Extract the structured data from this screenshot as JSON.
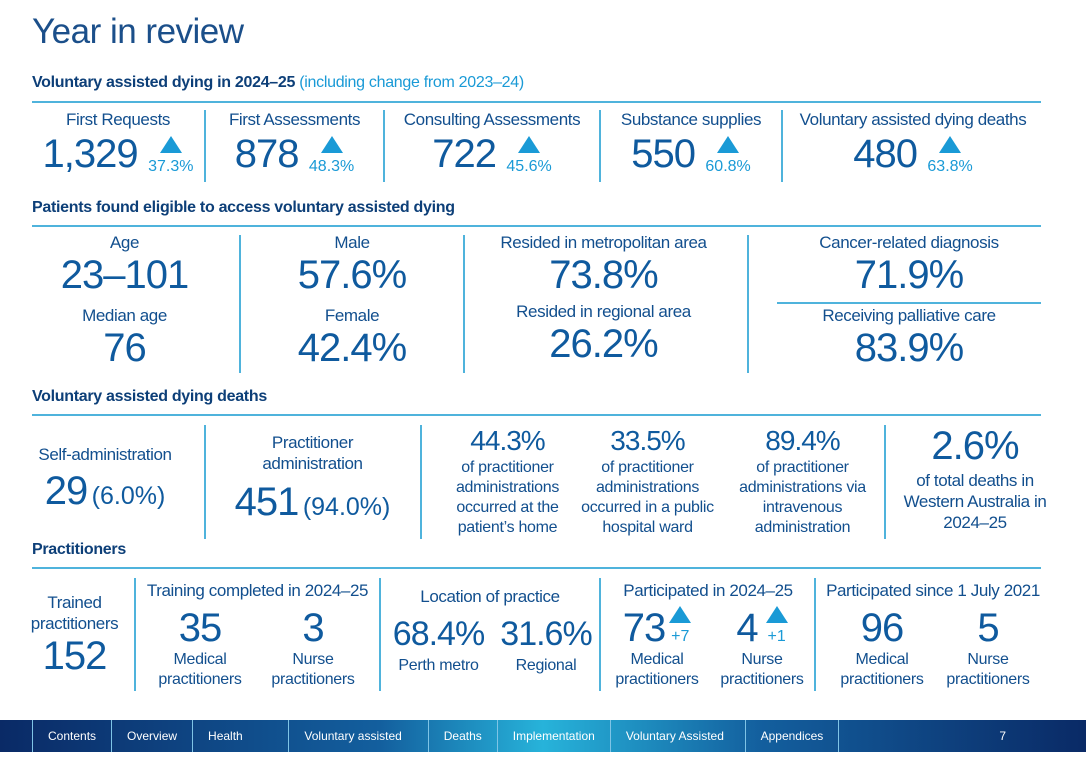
{
  "title": "Year in review",
  "s1": {
    "heading": "Voluntary assisted dying in 2024–25",
    "heading_note": "(including change from 2023–24)",
    "stats": [
      {
        "label": "First Requests",
        "value": "1,329",
        "change": "37.3%"
      },
      {
        "label": "First Assessments",
        "value": "878",
        "change": "48.3%"
      },
      {
        "label": "Consulting Assessments",
        "value": "722",
        "change": "45.6%"
      },
      {
        "label": "Substance supplies",
        "value": "550",
        "change": "60.8%"
      },
      {
        "label": "Voluntary assisted dying deaths",
        "value": "480",
        "change": "63.8%"
      }
    ]
  },
  "s2": {
    "heading": "Patients found eligible to access voluntary assisted dying",
    "age_label": "Age",
    "age_value": "23–101",
    "median_label": "Median age",
    "median_value": "76",
    "male_label": "Male",
    "male_value": "57.6%",
    "female_label": "Female",
    "female_value": "42.4%",
    "metro_label": "Resided in metropolitan area",
    "metro_value": "73.8%",
    "regional_label": "Resided in regional area",
    "regional_value": "26.2%",
    "cancer_label": "Cancer-related diagnosis",
    "cancer_value": "71.9%",
    "palliative_label": "Receiving palliative care",
    "palliative_value": "83.9%"
  },
  "s3": {
    "heading": "Voluntary assisted dying deaths",
    "self_label": "Self-administration",
    "self_value": "29",
    "self_pct": "(6.0%)",
    "prac_label": "Practitioner administration",
    "prac_value": "451",
    "prac_pct": "(94.0%)",
    "details": [
      {
        "value": "44.3%",
        "text": "of practitioner administrations occurred at the patient’s home"
      },
      {
        "value": "33.5%",
        "text": "of practitioner administrations occurred in a public hospital ward"
      },
      {
        "value": "89.4%",
        "text": "of practitioner administrations via intravenous administration"
      }
    ],
    "total_value": "2.6%",
    "total_text": "of total deaths in Western Australia in 2024–25"
  },
  "s4": {
    "heading": "Practitioners",
    "trained_label": "Trained practitioners",
    "trained_value": "152",
    "training_label": "Training completed in 2024–25",
    "training_med": "35",
    "training_med_label": "Medical practitioners",
    "training_nurse": "3",
    "training_nurse_label": "Nurse practitioners",
    "location_label": "Location of practice",
    "perth_value": "68.4%",
    "perth_label": "Perth metro",
    "regional_value": "31.6%",
    "regional_label": "Regional",
    "part_label": "Participated in 2024–25",
    "part_med": "73",
    "part_med_change": "+7",
    "part_med_label": "Medical practitioners",
    "part_nurse": "4",
    "part_nurse_change": "+1",
    "part_nurse_label": "Nurse practitioners",
    "since_label": "Participated since 1 July 2021",
    "since_med": "96",
    "since_med_label": "Medical practitioners",
    "since_nurse": "5",
    "since_nurse_label": "Nurse practitioners"
  },
  "nav": {
    "items": [
      "Contents",
      "Overview",
      "Health practitioners",
      "Voluntary assisted dying process",
      "Deaths",
      "Implementation",
      "Voluntary Assisted Dying Board",
      "Appendices"
    ],
    "page": "7"
  }
}
